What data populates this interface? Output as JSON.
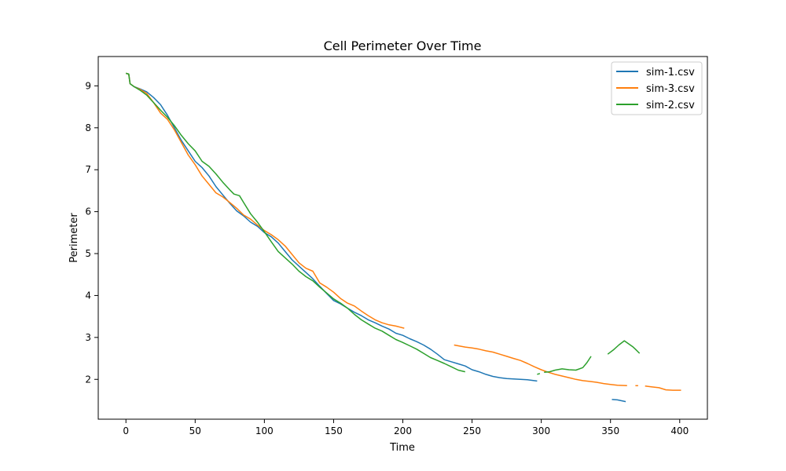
{
  "chart_data": {
    "type": "line",
    "title": "Cell Perimeter Over Time",
    "xlabel": "Time",
    "ylabel": "Perimeter",
    "xlim": [
      -20,
      420
    ],
    "ylim": [
      1.05,
      9.7
    ],
    "xticks": [
      0,
      50,
      100,
      150,
      200,
      250,
      300,
      350,
      400
    ],
    "yticks": [
      2,
      3,
      4,
      5,
      6,
      7,
      8,
      9
    ],
    "grid": false,
    "legend_position": "top-right",
    "series": [
      {
        "name": "sim-1.csv",
        "color": "#1f77b4",
        "segments": [
          [
            [
              0,
              9.3
            ],
            [
              2,
              9.28
            ],
            [
              3,
              9.05
            ],
            [
              6,
              8.98
            ],
            [
              10,
              8.93
            ],
            [
              15,
              8.86
            ],
            [
              20,
              8.72
            ],
            [
              25,
              8.55
            ],
            [
              27,
              8.45
            ],
            [
              30,
              8.3
            ],
            [
              35,
              8.0
            ],
            [
              40,
              7.7
            ],
            [
              45,
              7.45
            ],
            [
              48,
              7.3
            ],
            [
              50,
              7.2
            ],
            [
              55,
              7.05
            ],
            [
              60,
              6.85
            ],
            [
              65,
              6.6
            ],
            [
              70,
              6.4
            ],
            [
              75,
              6.2
            ],
            [
              80,
              6.02
            ],
            [
              85,
              5.9
            ],
            [
              90,
              5.75
            ],
            [
              95,
              5.65
            ],
            [
              100,
              5.5
            ],
            [
              105,
              5.4
            ],
            [
              110,
              5.25
            ],
            [
              115,
              5.05
            ],
            [
              120,
              4.85
            ],
            [
              125,
              4.7
            ],
            [
              130,
              4.55
            ],
            [
              135,
              4.4
            ],
            [
              140,
              4.22
            ],
            [
              145,
              4.05
            ],
            [
              150,
              3.88
            ],
            [
              155,
              3.8
            ],
            [
              160,
              3.7
            ],
            [
              165,
              3.6
            ],
            [
              170,
              3.52
            ],
            [
              175,
              3.42
            ],
            [
              180,
              3.35
            ],
            [
              185,
              3.27
            ],
            [
              190,
              3.2
            ],
            [
              195,
              3.1
            ],
            [
              200,
              3.05
            ],
            [
              205,
              2.97
            ],
            [
              210,
              2.9
            ],
            [
              215,
              2.82
            ],
            [
              220,
              2.72
            ],
            [
              225,
              2.6
            ],
            [
              230,
              2.47
            ],
            [
              235,
              2.42
            ],
            [
              240,
              2.37
            ],
            [
              245,
              2.32
            ],
            [
              250,
              2.23
            ],
            [
              255,
              2.18
            ],
            [
              260,
              2.12
            ],
            [
              265,
              2.07
            ],
            [
              270,
              2.04
            ],
            [
              275,
              2.02
            ],
            [
              280,
              2.01
            ],
            [
              285,
              2.0
            ],
            [
              290,
              1.99
            ],
            [
              297,
              1.96
            ]
          ],
          [
            [
              351,
              1.52
            ],
            [
              355,
              1.51
            ],
            [
              358,
              1.49
            ],
            [
              361,
              1.47
            ]
          ]
        ]
      },
      {
        "name": "sim-3.csv",
        "color": "#ff7f0e",
        "segments": [
          [
            [
              0,
              9.3
            ],
            [
              2,
              9.28
            ],
            [
              3,
              9.05
            ],
            [
              6,
              8.98
            ],
            [
              10,
              8.92
            ],
            [
              15,
              8.82
            ],
            [
              20,
              8.6
            ],
            [
              25,
              8.35
            ],
            [
              30,
              8.2
            ],
            [
              35,
              7.95
            ],
            [
              40,
              7.65
            ],
            [
              45,
              7.35
            ],
            [
              50,
              7.12
            ],
            [
              55,
              6.85
            ],
            [
              60,
              6.65
            ],
            [
              65,
              6.45
            ],
            [
              70,
              6.35
            ],
            [
              75,
              6.22
            ],
            [
              80,
              6.08
            ],
            [
              85,
              5.92
            ],
            [
              90,
              5.82
            ],
            [
              95,
              5.68
            ],
            [
              100,
              5.55
            ],
            [
              105,
              5.45
            ],
            [
              110,
              5.33
            ],
            [
              115,
              5.18
            ],
            [
              120,
              4.98
            ],
            [
              125,
              4.78
            ],
            [
              130,
              4.65
            ],
            [
              135,
              4.58
            ],
            [
              140,
              4.3
            ],
            [
              145,
              4.2
            ],
            [
              150,
              4.08
            ],
            [
              155,
              3.93
            ],
            [
              160,
              3.82
            ],
            [
              165,
              3.75
            ],
            [
              170,
              3.63
            ],
            [
              175,
              3.52
            ],
            [
              180,
              3.42
            ],
            [
              185,
              3.35
            ],
            [
              190,
              3.3
            ],
            [
              195,
              3.27
            ],
            [
              201,
              3.22
            ]
          ],
          [
            [
              237,
              2.82
            ],
            [
              240,
              2.8
            ],
            [
              245,
              2.77
            ],
            [
              250,
              2.75
            ],
            [
              255,
              2.72
            ],
            [
              260,
              2.68
            ],
            [
              265,
              2.65
            ],
            [
              270,
              2.6
            ],
            [
              275,
              2.55
            ],
            [
              280,
              2.5
            ],
            [
              285,
              2.45
            ],
            [
              290,
              2.38
            ],
            [
              295,
              2.3
            ],
            [
              300,
              2.23
            ],
            [
              305,
              2.17
            ],
            [
              310,
              2.12
            ],
            [
              315,
              2.08
            ],
            [
              320,
              2.04
            ],
            [
              325,
              2.0
            ],
            [
              330,
              1.97
            ],
            [
              335,
              1.95
            ],
            [
              340,
              1.93
            ],
            [
              345,
              1.9
            ],
            [
              350,
              1.88
            ],
            [
              355,
              1.86
            ],
            [
              362,
              1.85
            ]
          ],
          [
            [
              368,
              1.85
            ],
            [
              370,
              1.85
            ]
          ],
          [
            [
              375,
              1.84
            ],
            [
              380,
              1.82
            ],
            [
              385,
              1.8
            ],
            [
              390,
              1.75
            ],
            [
              395,
              1.74
            ],
            [
              401,
              1.74
            ]
          ]
        ]
      },
      {
        "name": "sim-2.csv",
        "color": "#2ca02c",
        "segments": [
          [
            [
              0,
              9.3
            ],
            [
              2,
              9.28
            ],
            [
              3,
              9.05
            ],
            [
              6,
              8.98
            ],
            [
              10,
              8.9
            ],
            [
              15,
              8.78
            ],
            [
              20,
              8.6
            ],
            [
              25,
              8.42
            ],
            [
              30,
              8.25
            ],
            [
              35,
              8.05
            ],
            [
              40,
              7.82
            ],
            [
              45,
              7.62
            ],
            [
              50,
              7.45
            ],
            [
              55,
              7.2
            ],
            [
              60,
              7.08
            ],
            [
              65,
              6.9
            ],
            [
              70,
              6.7
            ],
            [
              75,
              6.52
            ],
            [
              78,
              6.42
            ],
            [
              82,
              6.38
            ],
            [
              85,
              6.22
            ],
            [
              90,
              5.95
            ],
            [
              95,
              5.75
            ],
            [
              100,
              5.52
            ],
            [
              105,
              5.28
            ],
            [
              110,
              5.05
            ],
            [
              115,
              4.9
            ],
            [
              120,
              4.75
            ],
            [
              125,
              4.58
            ],
            [
              130,
              4.45
            ],
            [
              135,
              4.35
            ],
            [
              140,
              4.2
            ],
            [
              145,
              4.06
            ],
            [
              150,
              3.92
            ],
            [
              155,
              3.82
            ],
            [
              160,
              3.7
            ],
            [
              165,
              3.55
            ],
            [
              170,
              3.42
            ],
            [
              175,
              3.32
            ],
            [
              180,
              3.22
            ],
            [
              185,
              3.15
            ],
            [
              190,
              3.05
            ],
            [
              195,
              2.95
            ],
            [
              200,
              2.88
            ],
            [
              205,
              2.8
            ],
            [
              210,
              2.72
            ],
            [
              215,
              2.62
            ],
            [
              220,
              2.52
            ],
            [
              225,
              2.45
            ],
            [
              230,
              2.38
            ],
            [
              235,
              2.3
            ],
            [
              240,
              2.22
            ],
            [
              245,
              2.18
            ]
          ],
          [
            [
              297,
              2.12
            ],
            [
              299,
              2.14
            ]
          ],
          [
            [
              302,
              2.17
            ],
            [
              306,
              2.18
            ],
            [
              310,
              2.22
            ],
            [
              315,
              2.25
            ],
            [
              320,
              2.23
            ],
            [
              325,
              2.22
            ],
            [
              330,
              2.28
            ],
            [
              333,
              2.4
            ],
            [
              336,
              2.55
            ]
          ],
          [
            [
              348,
              2.6
            ],
            [
              352,
              2.7
            ],
            [
              356,
              2.82
            ],
            [
              360,
              2.92
            ],
            [
              363,
              2.85
            ],
            [
              366,
              2.78
            ],
            [
              368,
              2.72
            ],
            [
              371,
              2.62
            ]
          ]
        ]
      }
    ]
  }
}
